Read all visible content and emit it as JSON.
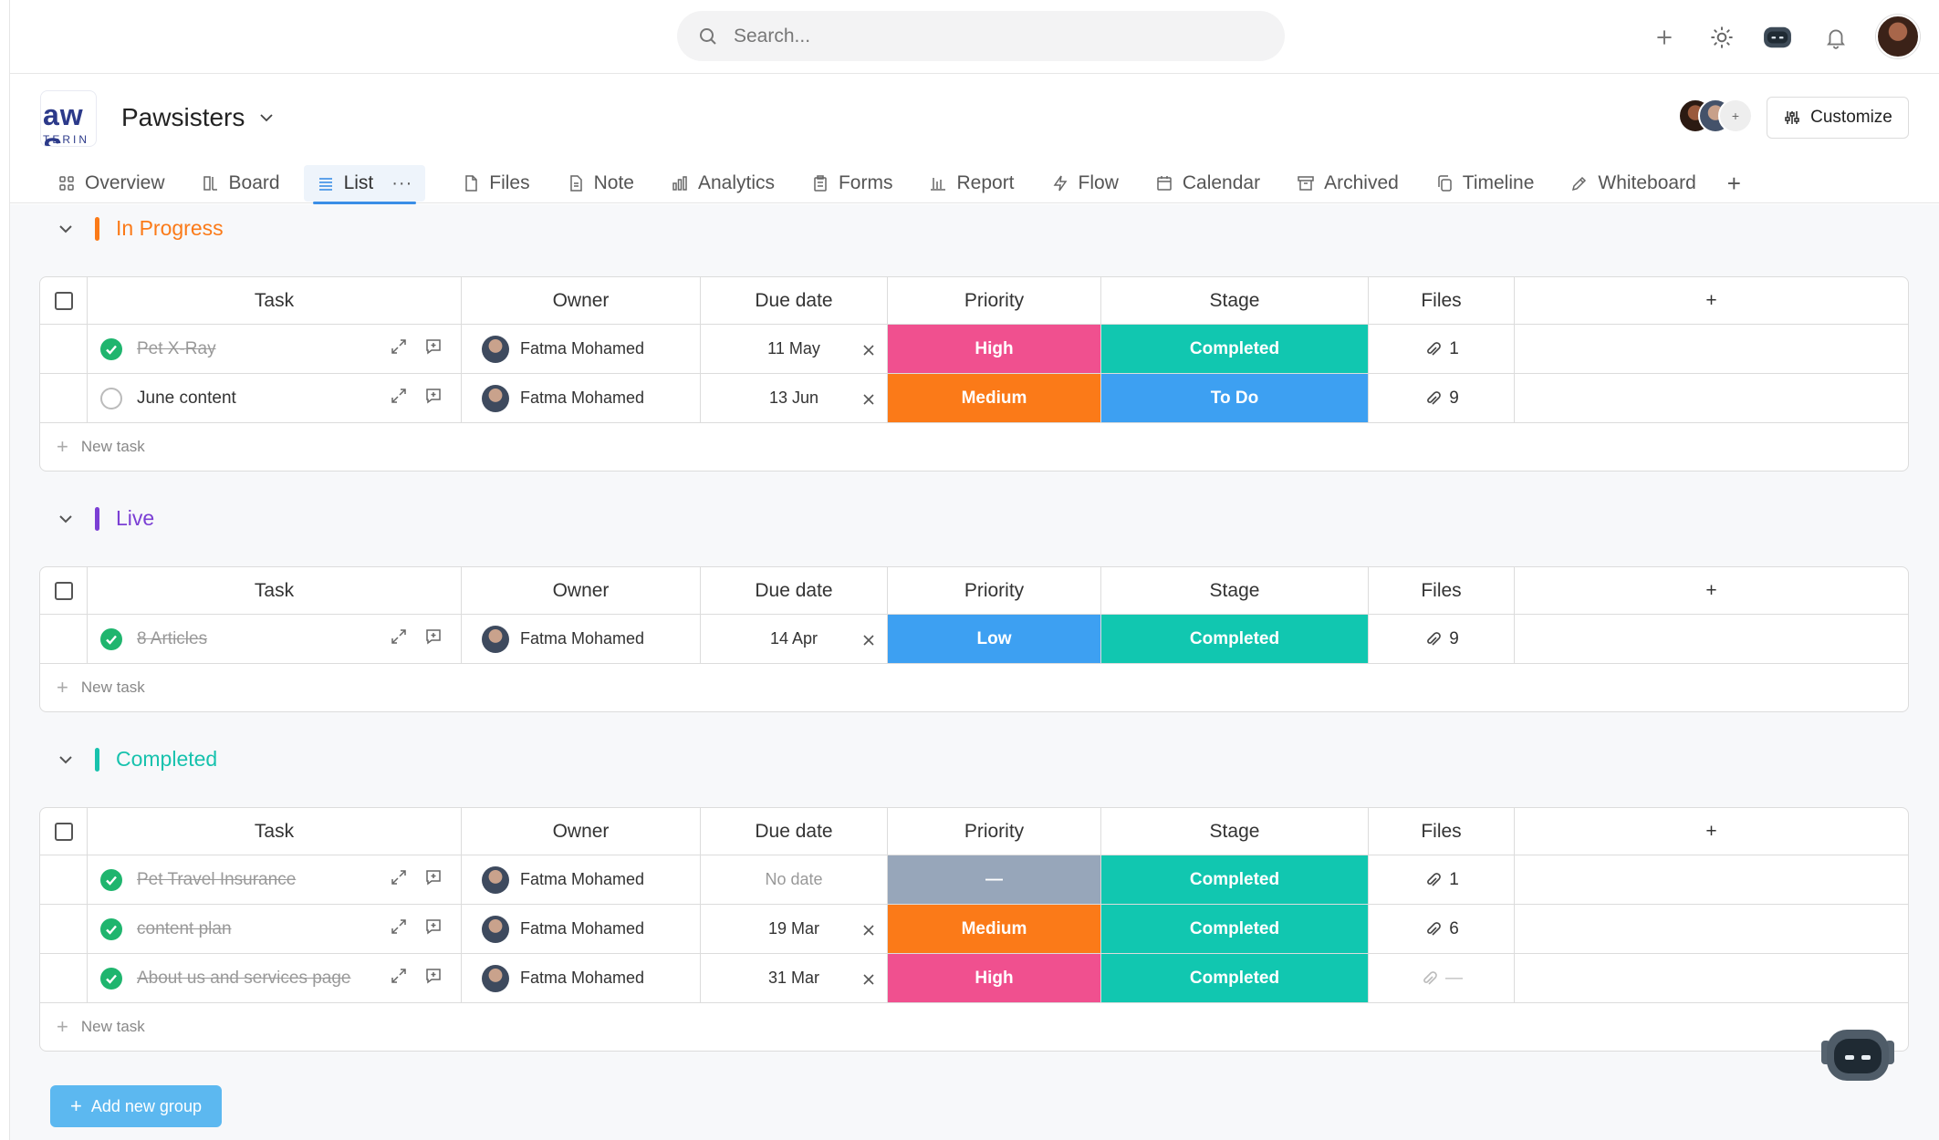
{
  "search": {
    "placeholder": "Search..."
  },
  "project": {
    "name": "Pawsisters",
    "logo_text_1": "aw S",
    "logo_text_2": "TERIN"
  },
  "header": {
    "customize_label": "Customize",
    "member_more": "+"
  },
  "tabs": [
    {
      "label": "Overview",
      "icon": "grid-icon"
    },
    {
      "label": "Board",
      "icon": "board-icon"
    },
    {
      "label": "List",
      "icon": "list-icon",
      "active": true,
      "more": "···"
    },
    {
      "label": "Files",
      "icon": "file-icon"
    },
    {
      "label": "Note",
      "icon": "note-icon"
    },
    {
      "label": "Analytics",
      "icon": "bar-chart-icon"
    },
    {
      "label": "Forms",
      "icon": "clipboard-icon"
    },
    {
      "label": "Report",
      "icon": "report-icon"
    },
    {
      "label": "Flow",
      "icon": "bolt-icon"
    },
    {
      "label": "Calendar",
      "icon": "calendar-icon"
    },
    {
      "label": "Archived",
      "icon": "archive-icon"
    },
    {
      "label": "Timeline",
      "icon": "copy-icon"
    },
    {
      "label": "Whiteboard",
      "icon": "pencil-icon"
    }
  ],
  "columns": {
    "task": "Task",
    "owner": "Owner",
    "due": "Due date",
    "priority": "Priority",
    "stage": "Stage",
    "files": "Files",
    "add": "+"
  },
  "new_task_label": "New task",
  "add_group_label": "Add new group",
  "colors": {
    "high": "#f0508f",
    "medium": "#fb7a18",
    "low": "#3da0f2",
    "none": "#97a6ba",
    "completed": "#11c7b0",
    "todo": "#3da0f2",
    "inprogress": "#fb7a18",
    "live": "#7b3fd4",
    "completed_group": "#17c2ad"
  },
  "groups": [
    {
      "title": "In Progress",
      "color_key": "inprogress",
      "rows": [
        {
          "task": "Pet X-Ray",
          "done": true,
          "owner": "Fatma Mohamed",
          "due": "11 May",
          "clear": true,
          "priority": "High",
          "pkey": "high",
          "stage": "Completed",
          "skey": "completed",
          "files": "1"
        },
        {
          "task": "June content",
          "done": false,
          "owner": "Fatma Mohamed",
          "due": "13 Jun",
          "clear": true,
          "priority": "Medium",
          "pkey": "medium",
          "stage": "To Do",
          "skey": "todo",
          "files": "9"
        }
      ]
    },
    {
      "title": "Live",
      "color_key": "live",
      "rows": [
        {
          "task": "8 Articles",
          "done": true,
          "owner": "Fatma Mohamed",
          "due": "14 Apr",
          "clear": true,
          "priority": "Low",
          "pkey": "low",
          "stage": "Completed",
          "skey": "completed",
          "files": "9"
        }
      ]
    },
    {
      "title": "Completed",
      "color_key": "completed_group",
      "rows": [
        {
          "task": "Pet Travel Insurance",
          "done": true,
          "owner": "Fatma Mohamed",
          "due": "No date",
          "clear": false,
          "priority": "—",
          "pkey": "none",
          "stage": "Completed",
          "skey": "completed",
          "files": "1"
        },
        {
          "task": "content plan",
          "done": true,
          "owner": "Fatma Mohamed",
          "due": "19 Mar",
          "clear": true,
          "priority": "Medium",
          "pkey": "medium",
          "stage": "Completed",
          "skey": "completed",
          "files": "6"
        },
        {
          "task": "About us and services page",
          "done": true,
          "owner": "Fatma Mohamed",
          "due": "31 Mar",
          "clear": true,
          "priority": "High",
          "pkey": "high",
          "stage": "Completed",
          "skey": "completed",
          "files": "—"
        }
      ]
    }
  ]
}
